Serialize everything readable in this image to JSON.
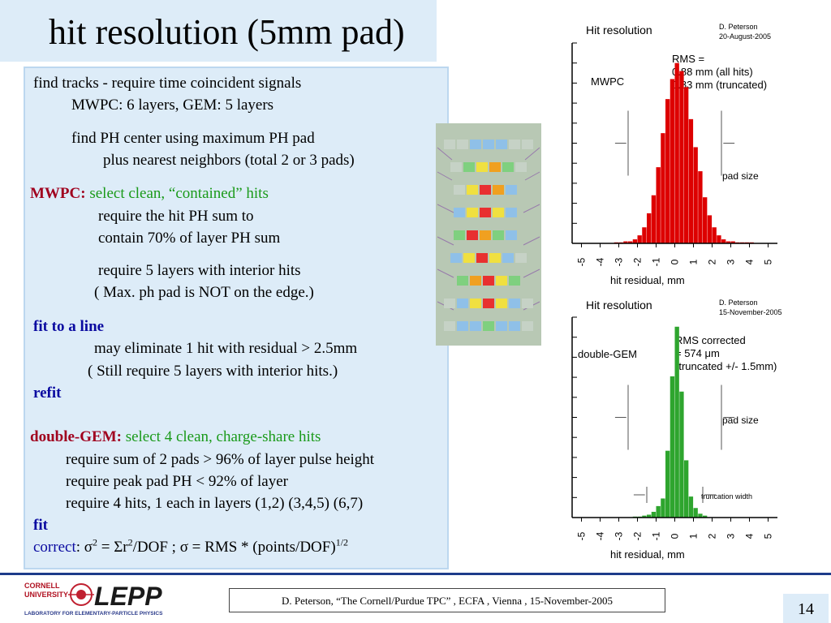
{
  "slide": {
    "title": "hit resolution (5mm pad)",
    "page_number": "14"
  },
  "body": {
    "l1": "find tracks - require time coincident signals",
    "l2": "MWPC: 6 layers,     GEM: 5 layers",
    "l3": "find PH center using maximum PH pad",
    "l4": "plus nearest neighbors (total  2 or 3 pads)",
    "mwpc_label": "MWPC:",
    "mwpc_select": "select clean, “contained” hits",
    "l6": "require the hit PH sum to",
    "l7": "contain 70% of  layer PH sum",
    "l8": "require 5 layers with interior hits",
    "l9": "( Max. ph pad is NOT on the edge.)",
    "fit_line": "fit to a line",
    "l11": "may eliminate 1 hit with residual > 2.5mm",
    "l12": "( Still require 5 layers with interior hits.)",
    "refit": "refit",
    "gem_label": "double-GEM:",
    "gem_select": "select 4 clean, charge-share hits",
    "l15": "require sum of 2 pads > 96% of layer pulse height",
    "l16": "require peak pad PH < 92% of layer",
    "l17": "require 4 hits, 1 each in layers (1,2) (3,4,5) (6,7)",
    "fit": "fit",
    "correct_label": "correct",
    "f_colon": ":",
    "f_sigma1": "σ",
    "f_sup2a": "2",
    "f_mid": " = Σr",
    "f_sup2b": "2",
    "f_rest": "/DOF ; σ =  RMS *  (points/DOF)",
    "f_exp": "1/2"
  },
  "footer": {
    "citation": "D. Peterson,  “The Cornell/Purdue TPC” ,  ECFA , Vienna , 15-November-2005",
    "logo_text": "CORNELL UNIVERSITY LEPP LABORATORY FOR ELEMENTARY-PARTICLE PHYSICS"
  },
  "colors": {
    "title_bg": "#ddecf8",
    "mwpc_bars": "#dd0000",
    "gem_bars": "#2ea52e",
    "footer_line": "#1d3b8a"
  },
  "chart_data": [
    {
      "type": "bar",
      "title": "Hit resolution",
      "author": "D. Peterson",
      "date": "20-August-2005",
      "label": "MWPC",
      "rms_lines": [
        "RMS =",
        "0.88 mm (all hits)",
        "0.83 mm (truncated)"
      ],
      "pad_size_label": "pad size",
      "xlabel": "hit residual, mm",
      "xlim": [
        -5.5,
        5.5
      ],
      "x_ticks": [
        "-5",
        "-4",
        "-3",
        "-2",
        "-1",
        "0",
        "1",
        "2",
        "3",
        "4",
        "5"
      ],
      "bin_width": 0.25,
      "bin_starts": [
        -3.25,
        -3.0,
        -2.75,
        -2.5,
        -2.25,
        -2.0,
        -1.75,
        -1.5,
        -1.25,
        -1.0,
        -0.75,
        -0.5,
        -0.25,
        0.0,
        0.25,
        0.5,
        0.75,
        1.0,
        1.25,
        1.5,
        1.75,
        2.0,
        2.25,
        2.5,
        2.75,
        3.0,
        3.25,
        3.5,
        3.75,
        4.0
      ],
      "values": [
        0.5,
        0.5,
        1,
        1,
        2,
        4,
        8,
        15,
        24,
        38,
        55,
        72,
        82,
        90,
        86,
        78,
        62,
        48,
        36,
        23,
        14,
        8,
        4,
        2,
        1,
        1,
        0.5,
        0.5,
        0.5,
        0.5
      ],
      "ylim": [
        0,
        100
      ],
      "pad_size_markers": [
        -2.5,
        2.5
      ]
    },
    {
      "type": "bar",
      "title": "Hit resolution",
      "author": "D. Peterson",
      "date": "15-November-2005",
      "label": "double-GEM",
      "rms_lines": [
        "RMS corrected",
        "= 574 μm",
        "(truncated +/- 1.5mm)"
      ],
      "pad_size_label": "pad size",
      "truncation_label": "truncation width",
      "xlabel": "hit residual, mm",
      "xlim": [
        -5.5,
        5.5
      ],
      "x_ticks": [
        "-5",
        "-4",
        "-3",
        "-2",
        "-1",
        "0",
        "1",
        "2",
        "3",
        "4",
        "5"
      ],
      "bin_width": 0.25,
      "bin_starts": [
        -2.25,
        -2.0,
        -1.75,
        -1.5,
        -1.25,
        -1.0,
        -0.75,
        -0.5,
        -0.25,
        0.0,
        0.25,
        0.5,
        0.75,
        1.0,
        1.25,
        1.5
      ],
      "values": [
        0.5,
        0.5,
        1,
        1.5,
        3,
        6,
        10,
        35,
        74,
        100,
        66,
        30,
        11,
        5,
        2,
        1
      ],
      "ylim": [
        0,
        105
      ],
      "pad_size_markers": [
        -2.5,
        2.5
      ],
      "truncation_markers": [
        -1.5,
        1.5
      ]
    }
  ]
}
